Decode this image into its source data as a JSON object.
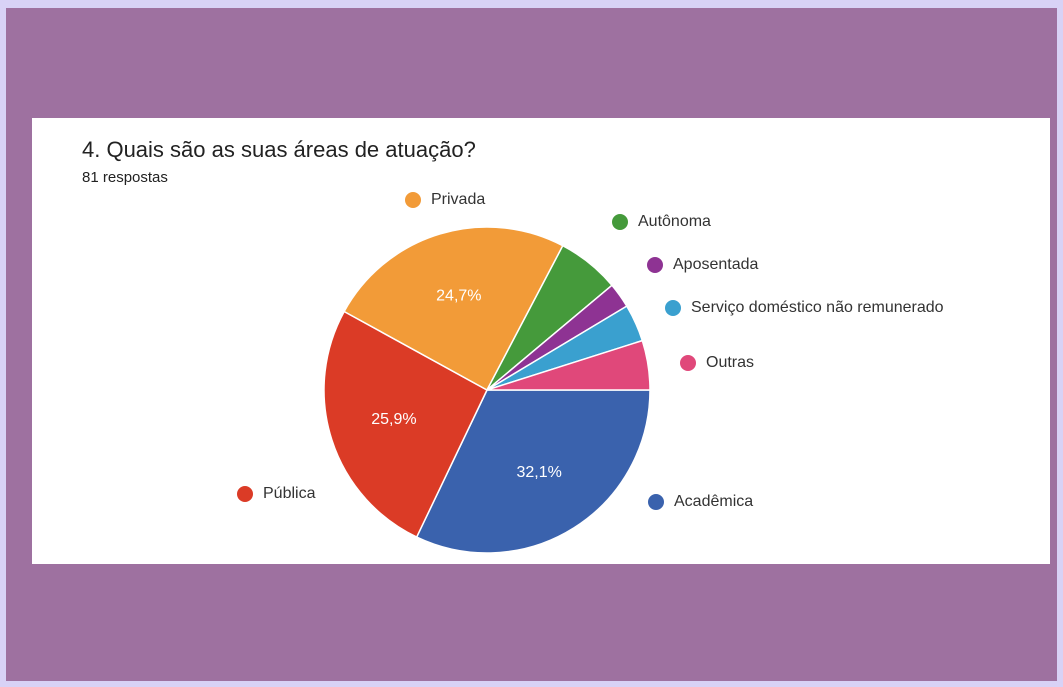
{
  "chart_data": {
    "type": "pie",
    "title": "4. Quais são as suas áreas de atuação?",
    "subtitle": "81 respostas",
    "categories": [
      "Acadêmica",
      "Pública",
      "Privada",
      "Autônoma",
      "Aposentada",
      "Serviço doméstico não remunerado",
      "Outras"
    ],
    "values": [
      32.1,
      25.9,
      24.7,
      6.2,
      2.5,
      3.7,
      4.9
    ],
    "value_labels": [
      "32,1%",
      "25,9%",
      "24,7%",
      null,
      null,
      null,
      null
    ],
    "colors": [
      "#3a62ad",
      "#db3b26",
      "#f29b38",
      "#459a3b",
      "#8e3393",
      "#3aa0cf",
      "#e0487a"
    ]
  }
}
